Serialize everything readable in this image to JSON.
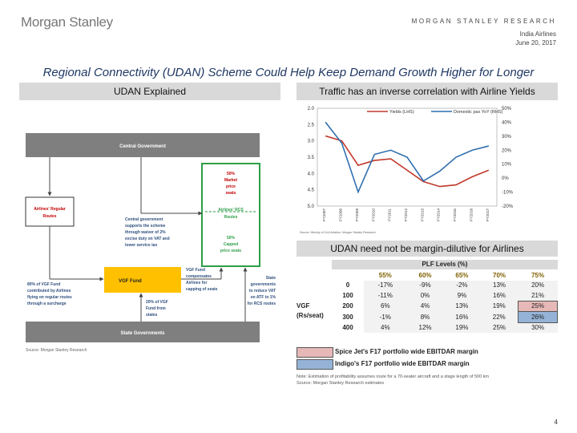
{
  "header": {
    "logo": "Morgan Stanley",
    "research": "MORGAN STANLEY RESEARCH",
    "subject": "India Airlines",
    "date": "June 20, 2017"
  },
  "title": "Regional Connectivity (UDAN) Scheme Could Help Keep Demand Growth Higher for Longer",
  "left_panel": {
    "heading": "UDAN Explained",
    "central_govt": "Central Government",
    "state_govts": "State Governments",
    "vgf_fund": "VGF Fund",
    "regular_routes": [
      "Airlines' Regular",
      "Routes"
    ],
    "rcs_routes": [
      "Airlines' RCS",
      "Routes"
    ],
    "market_seats": [
      "50%",
      "Market",
      "price",
      "seats"
    ],
    "capped_seats": [
      "50%",
      "Capped",
      "price seats"
    ],
    "central_support": [
      "Central government",
      "supports the scheme",
      "through waiver of 2%",
      "excise duty on VAT and",
      "lower service tax"
    ],
    "vgf_compensates": [
      "VGF Fund",
      "compensates",
      "Airlines for",
      "capping of seats"
    ],
    "state_reduce": [
      "State",
      "governments",
      "to reduce VAT",
      "on ATF to 1%",
      "for RCS routes"
    ],
    "vgf_80": [
      "80% of VGF Fund",
      "contributed by Airlines",
      "flying on regular routes",
      "through a surcharge"
    ],
    "vgf_20": [
      "20% of VGF",
      "Fund from",
      "states"
    ],
    "source": "Source: Morgan Stanley Research"
  },
  "right_top": {
    "heading": "Traffic has an inverse correlation with Airline Yields",
    "source": "Source: Ministry of Civil Aviation, Morgan Stanley Research"
  },
  "chart_data": {
    "type": "line",
    "categories": [
      "FY2007",
      "FY2008",
      "FY2009",
      "FY2010",
      "FY2011",
      "FY2012",
      "FY2013",
      "FY2014",
      "FY2015",
      "FY2016",
      "FY2017"
    ],
    "series": [
      {
        "name": "Yields (LHS)",
        "axis": "left",
        "color": "#c0392b",
        "values": [
          2.85,
          3.0,
          3.75,
          3.6,
          3.55,
          3.9,
          4.25,
          4.4,
          4.35,
          4.1,
          3.9
        ]
      },
      {
        "name": "Domestic pax YoY (RHS)",
        "axis": "right",
        "color": "#2f6fb0",
        "values": [
          40,
          25,
          -10,
          17,
          20,
          15,
          -2,
          5,
          15,
          20,
          23
        ]
      }
    ],
    "left_axis": {
      "label": "Yields (LHS)",
      "ticks": [
        "2.0",
        "2.5",
        "3.0",
        "3.5",
        "4.0",
        "4.5",
        "5.0"
      ],
      "range": [
        2.0,
        5.0
      ],
      "inverted": true
    },
    "right_axis": {
      "label": "Domestic pax YoY (RHS)",
      "ticks": [
        "50%",
        "40%",
        "30%",
        "20%",
        "10%",
        "0%",
        "-10%",
        "-20%"
      ],
      "range": [
        -20,
        50
      ]
    }
  },
  "right_bottom": {
    "heading": "UDAN need not be margin-dilutive for Airlines",
    "plf_title": "PLF Levels (%)",
    "plf_headers": [
      "55%",
      "60%",
      "65%",
      "70%",
      "75%"
    ],
    "vgf_label": [
      "VGF",
      "(Rs/seat)"
    ],
    "rows": [
      {
        "vgf": "0",
        "cells": [
          "-17%",
          "-9%",
          "-2%",
          "13%",
          "20%"
        ]
      },
      {
        "vgf": "100",
        "cells": [
          "-11%",
          "0%",
          "9%",
          "16%",
          "21%"
        ]
      },
      {
        "vgf": "200",
        "cells": [
          "6%",
          "4%",
          "13%",
          "19%",
          "25%"
        ]
      },
      {
        "vgf": "300",
        "cells": [
          "-1%",
          "8%",
          "16%",
          "22%",
          "26%"
        ]
      },
      {
        "vgf": "400",
        "cells": [
          "4%",
          "12%",
          "19%",
          "25%",
          "30%"
        ]
      }
    ],
    "legend_spicejet": "Spice Jet's F17 portfolio wide EBITDAR margin",
    "legend_indigo": "Indigo's F17 portfolio wide EBITDAR margin",
    "spicejet_color": "#e6b8b7",
    "indigo_color": "#95b3d7",
    "note": "Note: Estimation of profitability assumes route for a 70-seater aircraft and a stage length of 500 km",
    "source": "Source: Morgan Stanley Research estimates"
  },
  "page_number": "4"
}
